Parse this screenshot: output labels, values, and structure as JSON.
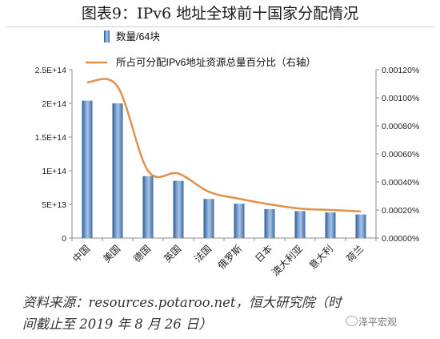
{
  "page": {
    "title": "图表9：IPv6 地址全球前十国家分配情况",
    "source_line1": "资料来源：resources.potaroo.net，恒大研究院（时",
    "source_line2": "间截止至 2019 年 8 月 26 日）",
    "watermark": "泽平宏观"
  },
  "chart_data": {
    "type": "bar",
    "categories": [
      "中国",
      "美国",
      "德国",
      "英国",
      "法国",
      "俄罗斯",
      "日本",
      "澳大利亚",
      "意大利",
      "荷兰"
    ],
    "series": [
      {
        "name": "数量/64块",
        "type": "bar",
        "axis": "left",
        "values": [
          204000000000000.0,
          200000000000000.0,
          92000000000000.0,
          85000000000000.0,
          58000000000000.0,
          51000000000000.0,
          43000000000000.0,
          40000000000000.0,
          38000000000000.0,
          35000000000000.0
        ]
      },
      {
        "name": "所占可分配IPv6地址资源总量百分比（右轴）",
        "type": "line",
        "axis": "right",
        "values": [
          0.00111,
          0.00108,
          0.00048,
          0.00046,
          0.00033,
          0.00028,
          0.00024,
          0.00021,
          0.0002,
          0.00019
        ]
      }
    ],
    "y_left": {
      "ylim": [
        0,
        250000000000000.0
      ],
      "ticks": [
        0,
        50000000000000.0,
        100000000000000.0,
        150000000000000.0,
        200000000000000.0,
        250000000000000.0
      ],
      "tick_labels": [
        "0",
        "5E+13",
        "1E+14",
        "1.5E+14",
        "2E+14",
        "2.5E+14"
      ]
    },
    "y_right": {
      "ylim": [
        0,
        0.0012
      ],
      "ticks": [
        0,
        0.0002,
        0.0004,
        0.0006,
        0.0008,
        0.001,
        0.0012
      ],
      "tick_labels": [
        "0.00000%",
        "0.00020%",
        "0.00040%",
        "0.00060%",
        "0.00080%",
        "0.00100%",
        "0.00120%"
      ]
    },
    "legend_position": "top-left",
    "grid": false,
    "colors": {
      "bar": "#4f81bd",
      "line": "#e0914a"
    }
  }
}
